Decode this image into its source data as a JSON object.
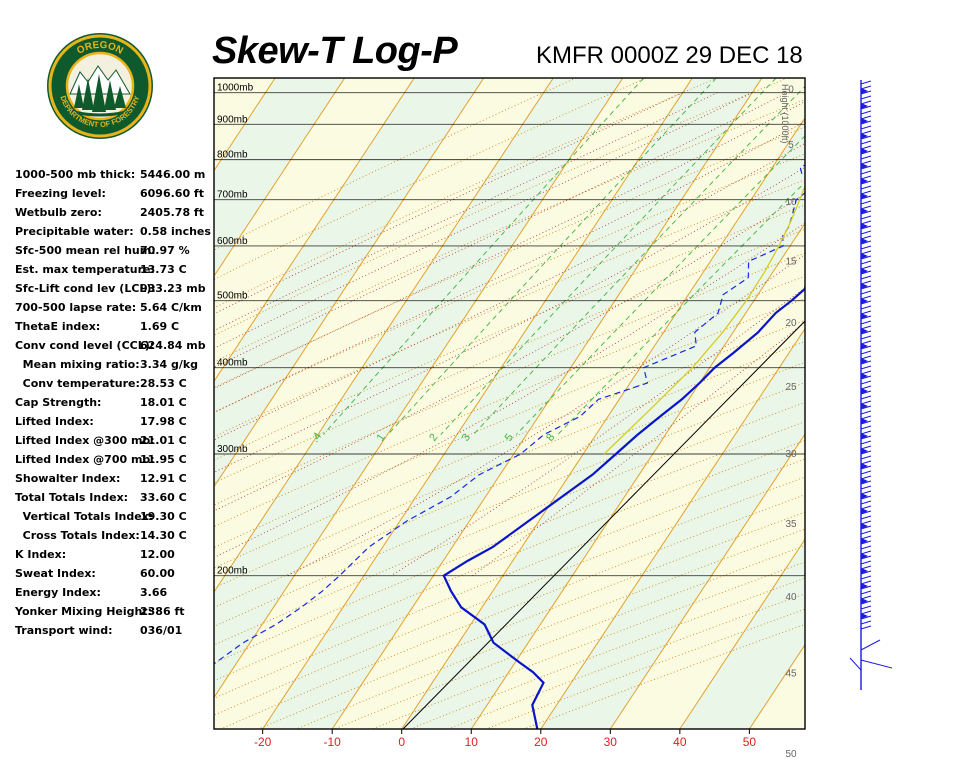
{
  "header": {
    "title": "Skew-T Log-P",
    "subtitle": "KMFR 0000Z 29 DEC 18"
  },
  "logo": {
    "top_text": "OREGON",
    "bottom_text": "DEPARTMENT OF FORESTRY"
  },
  "indices": [
    {
      "label": "1000-500 mb thick:",
      "value": "5446.00 m"
    },
    {
      "label": "Freezing level:",
      "value": "6096.60 ft"
    },
    {
      "label": "Wetbulb zero:",
      "value": "2405.78 ft"
    },
    {
      "label": "Precipitable water:",
      "value": "0.58 inches"
    },
    {
      "label": "Sfc-500 mean rel hum:",
      "value": "70.97 %"
    },
    {
      "label": "Est. max temperature:",
      "value": "13.73 C"
    },
    {
      "label": "Sfc-Lift cond lev (LCL):",
      "value": "933.23 mb"
    },
    {
      "label": "700-500 lapse rate:",
      "value": "5.64 C/km"
    },
    {
      "label": "ThetaE index:",
      "value": "1.69 C"
    },
    {
      "label": "Conv cond level (CCL):",
      "value": "624.84 mb"
    },
    {
      "label": "  Mean mixing ratio:",
      "value": "3.34 g/kg"
    },
    {
      "label": "  Conv temperature:",
      "value": "28.53 C"
    },
    {
      "label": "Cap Strength:",
      "value": "18.01 C"
    },
    {
      "label": "Lifted Index:",
      "value": "17.98 C"
    },
    {
      "label": "Lifted Index @300 mb:",
      "value": "21.01 C"
    },
    {
      "label": "Lifted Index @700 mb:",
      "value": "11.95 C"
    },
    {
      "label": "Showalter Index:",
      "value": "12.91 C"
    },
    {
      "label": "Total Totals Index:",
      "value": "33.60 C"
    },
    {
      "label": "  Vertical Totals Index:",
      "value": "19.30 C"
    },
    {
      "label": "  Cross Totals Index:",
      "value": "14.30 C"
    },
    {
      "label": "K Index:",
      "value": "12.00"
    },
    {
      "label": "Sweat Index:",
      "value": "60.00"
    },
    {
      "label": "Energy Index:",
      "value": "3.66"
    },
    {
      "label": "Yonker Mixing Height:",
      "value": "2386 ft"
    },
    {
      "label": "Transport wind:",
      "value": "036/01"
    }
  ],
  "chart_data": {
    "type": "line",
    "title": "Skew-T Log-P",
    "subtitle": "KMFR 0000Z 29 DEC 18",
    "x_axis": {
      "ticks": [
        -20,
        -10,
        0,
        10,
        20,
        30,
        40,
        50
      ],
      "range": [
        -27,
        58
      ],
      "unit": "C"
    },
    "pressure_levels": [
      1000,
      900,
      800,
      700,
      600,
      500,
      400,
      300,
      200
    ],
    "pressure_labels": [
      "1000mb",
      "900mb",
      "800mb",
      "700mb",
      "600mb",
      "500mb",
      "400mb",
      "300mb",
      "200mb"
    ],
    "pressure_range": [
      1050,
      120
    ],
    "height_axis": {
      "label": "Height (1000ft)",
      "ticks": [
        0,
        5,
        10,
        15,
        20,
        25,
        30,
        35,
        40,
        45,
        50
      ]
    },
    "mixing_ratio_labels": [
      ".4",
      "1",
      "2",
      "3",
      "5",
      "8"
    ],
    "colors": {
      "temperature": "#0a14c8",
      "dewpoint": "#1428e6",
      "parcel": "#d8cc20",
      "isotherm": "#e3a22c",
      "dry_adiabat": "#d08a20",
      "moist_adiabat": "#7a7a7a",
      "mixing_ratio": "#3cb43c",
      "isobar": "#000000",
      "barb": "#1a1ae6"
    },
    "series": [
      {
        "key": "temperature",
        "points": [
          [
            1030,
            9.5
          ],
          [
            1000,
            8.5
          ],
          [
            970,
            7.0
          ],
          [
            950,
            9.5
          ],
          [
            925,
            11.2
          ],
          [
            900,
            11.5
          ],
          [
            875,
            12.8
          ],
          [
            850,
            13.2
          ],
          [
            825,
            13.6
          ],
          [
            800,
            13.5
          ],
          [
            775,
            14.6
          ],
          [
            750,
            16.0
          ],
          [
            725,
            14.8
          ],
          [
            700,
            14.6
          ],
          [
            680,
            14.9
          ],
          [
            650,
            14.4
          ],
          [
            620,
            15.0
          ],
          [
            600,
            13.4
          ],
          [
            580,
            15.6
          ],
          [
            560,
            16.0
          ],
          [
            540,
            15.6
          ],
          [
            520,
            16.2
          ],
          [
            500,
            15.4
          ],
          [
            480,
            14.3
          ],
          [
            450,
            13.6
          ],
          [
            420,
            12.0
          ],
          [
            400,
            10.7
          ],
          [
            380,
            10.0
          ],
          [
            360,
            9.0
          ],
          [
            340,
            7.5
          ],
          [
            320,
            6.0
          ],
          [
            300,
            4.7
          ],
          [
            280,
            3.3
          ],
          [
            260,
            1.0
          ],
          [
            240,
            -1.5
          ],
          [
            220,
            -4.2
          ],
          [
            210,
            -6.5
          ],
          [
            200,
            -8.5
          ],
          [
            190,
            -6.0
          ],
          [
            180,
            -3.0
          ],
          [
            170,
            2.0
          ],
          [
            160,
            5.0
          ],
          [
            150,
            10.5
          ],
          [
            145,
            13.5
          ],
          [
            140,
            16.0
          ],
          [
            130,
            16.5
          ],
          [
            120,
            19.5
          ]
        ]
      },
      {
        "key": "dewpoint",
        "points": [
          [
            1030,
            7.0
          ],
          [
            1000,
            5.0
          ],
          [
            980,
            5.5
          ],
          [
            960,
            2.5
          ],
          [
            940,
            3.0
          ],
          [
            925,
            4.0
          ],
          [
            900,
            4.0
          ],
          [
            880,
            6.0
          ],
          [
            850,
            4.5
          ],
          [
            820,
            4.0
          ],
          [
            800,
            5.5
          ],
          [
            780,
            4.0
          ],
          [
            760,
            5.0
          ],
          [
            740,
            8.0
          ],
          [
            700,
            6.5
          ],
          [
            680,
            7.0
          ],
          [
            660,
            7.5
          ],
          [
            640,
            8.0
          ],
          [
            620,
            8.0
          ],
          [
            600,
            9.0
          ],
          [
            570,
            5.5
          ],
          [
            540,
            7.0
          ],
          [
            510,
            5.0
          ],
          [
            480,
            6.0
          ],
          [
            450,
            4.5
          ],
          [
            430,
            6.0
          ],
          [
            400,
            0.5
          ],
          [
            380,
            2.5
          ],
          [
            360,
            -3.0
          ],
          [
            340,
            -4.0
          ],
          [
            320,
            -7.5
          ],
          [
            300,
            -9.0
          ],
          [
            280,
            -13.0
          ],
          [
            260,
            -15.0
          ],
          [
            240,
            -19.0
          ],
          [
            220,
            -22.0
          ],
          [
            200,
            -23.5
          ],
          [
            190,
            -24.5
          ],
          [
            180,
            -26.0
          ],
          [
            170,
            -28.0
          ],
          [
            160,
            -31.0
          ],
          [
            150,
            -33.0
          ],
          [
            140,
            -35.0
          ],
          [
            130,
            -35.0
          ],
          [
            120,
            -34.0
          ]
        ]
      },
      {
        "key": "parcel",
        "points": [
          [
            1000,
            6.2
          ],
          [
            950,
            5.0
          ],
          [
            933,
            4.4
          ],
          [
            900,
            4.5
          ],
          [
            850,
            4.8
          ],
          [
            800,
            5.4
          ],
          [
            750,
            6.2
          ],
          [
            700,
            7.0
          ],
          [
            650,
            7.8
          ],
          [
            600,
            8.4
          ],
          [
            550,
            8.8
          ],
          [
            500,
            8.9
          ],
          [
            450,
            8.5
          ],
          [
            400,
            7.5
          ],
          [
            350,
            5.5
          ],
          [
            300,
            3.0
          ]
        ]
      }
    ]
  }
}
